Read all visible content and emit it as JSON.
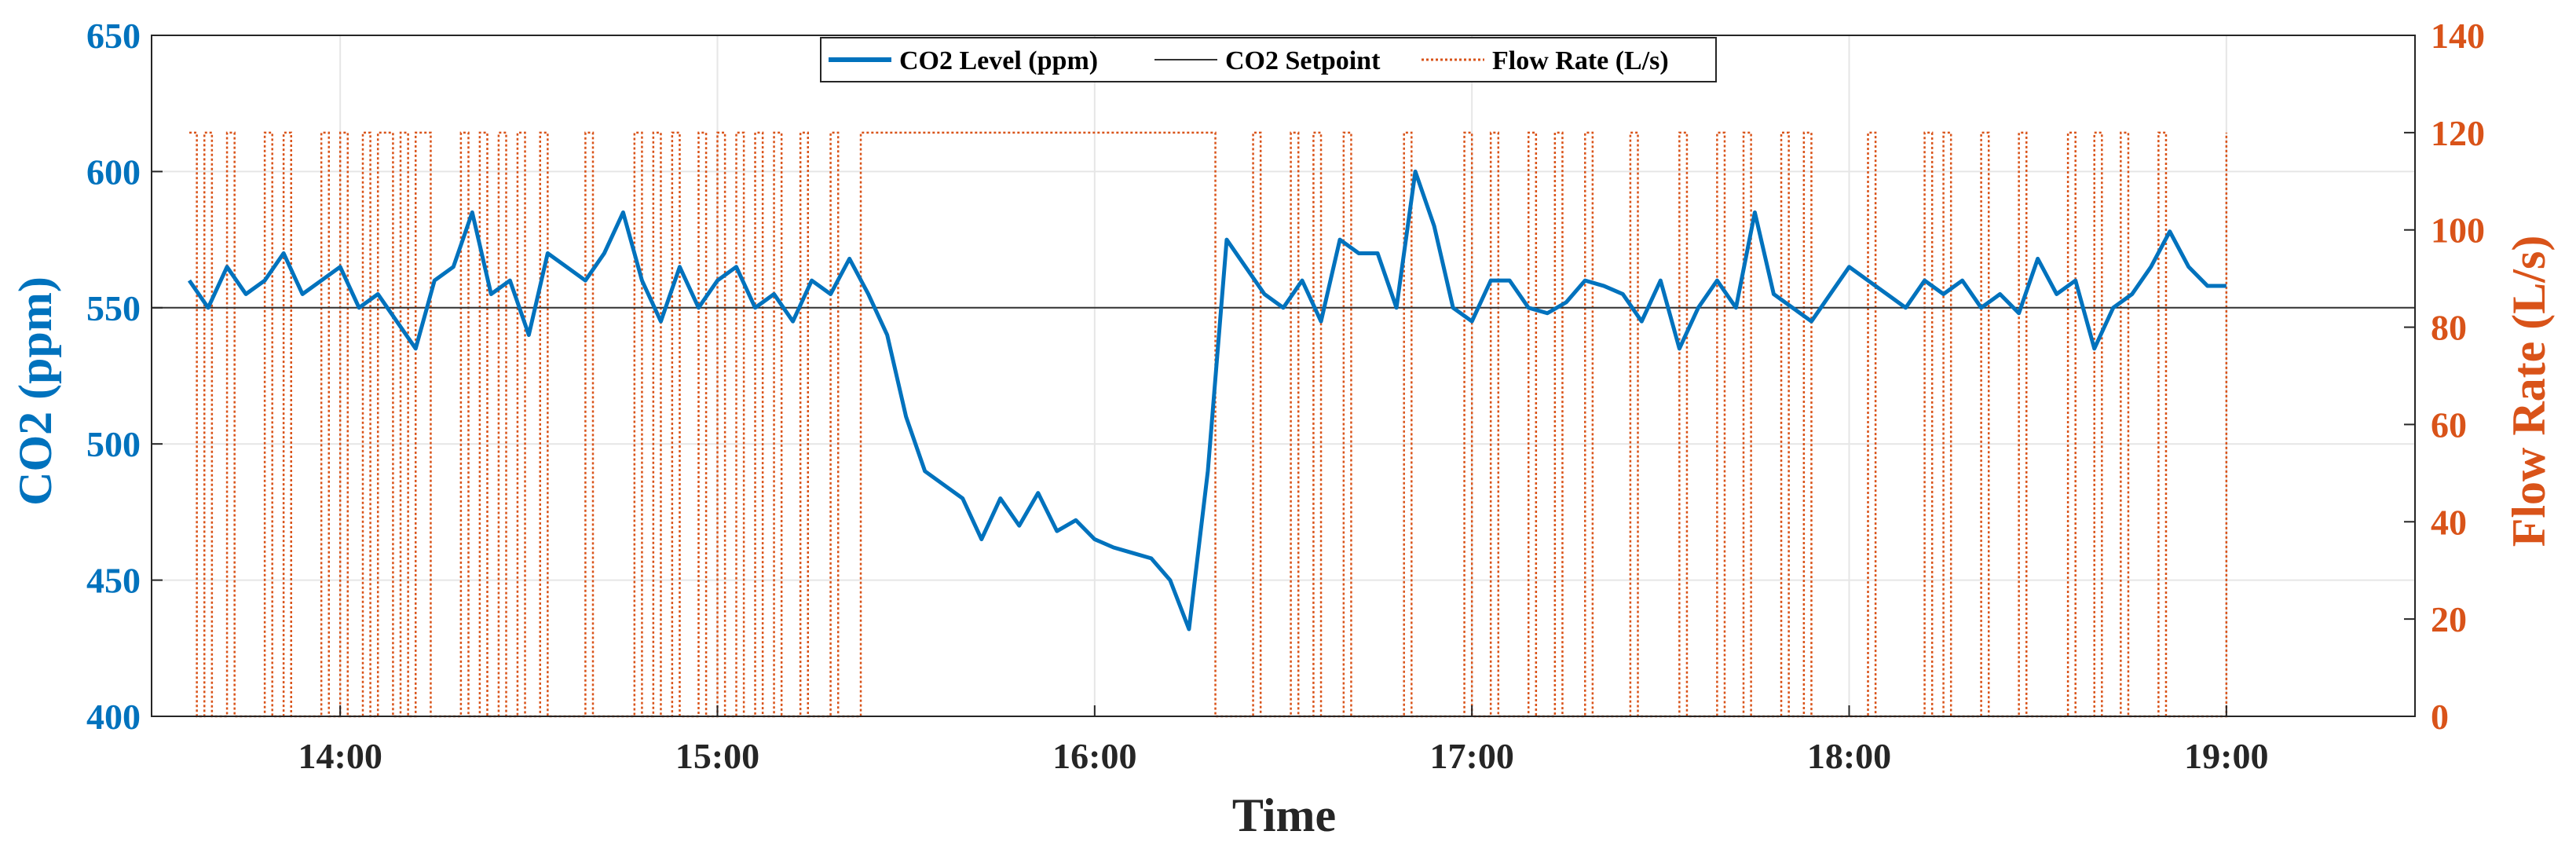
{
  "colors": {
    "co2": "#0072BD",
    "flow": "#D95319",
    "setpoint": "#333333",
    "grid": "#e6e6e6",
    "axis": "#262626"
  },
  "chart_data": {
    "type": "line",
    "title": "",
    "xlabel": "Time",
    "ylabel_left": "CO2 (ppm)",
    "ylabel_right": "Flow Rate (L/s)",
    "xlim": [
      13.5,
      19.5
    ],
    "ylim_left": [
      400,
      650
    ],
    "ylim_right": [
      0,
      140
    ],
    "x_ticks": [
      14,
      15,
      16,
      17,
      18,
      19
    ],
    "x_tick_labels": [
      "14:00",
      "15:00",
      "16:00",
      "17:00",
      "18:00",
      "19:00"
    ],
    "y_left_ticks": [
      400,
      450,
      500,
      550,
      600,
      650
    ],
    "y_left_tick_labels": [
      "400",
      "450",
      "500",
      "550",
      "600",
      "650"
    ],
    "y_right_ticks": [
      0,
      20,
      40,
      60,
      80,
      100,
      120,
      140
    ],
    "y_right_tick_labels": [
      "0",
      "20",
      "40",
      "60",
      "80",
      "100",
      "120",
      "140"
    ],
    "grid": true,
    "legend_position": "top-center",
    "legend": [
      "CO2 Level (ppm)",
      "CO2 Setpoint",
      "Flow Rate (L/s)"
    ],
    "series": [
      {
        "name": "CO2 Level (ppm)",
        "axis": "left",
        "x": [
          13.6,
          13.65,
          13.7,
          13.75,
          13.8,
          13.85,
          13.9,
          13.95,
          14.0,
          14.05,
          14.1,
          14.15,
          14.2,
          14.25,
          14.3,
          14.35,
          14.4,
          14.45,
          14.5,
          14.55,
          14.6,
          14.65,
          14.7,
          14.75,
          14.8,
          14.85,
          14.9,
          14.95,
          15.0,
          15.05,
          15.1,
          15.15,
          15.2,
          15.25,
          15.3,
          15.35,
          15.4,
          15.45,
          15.5,
          15.55,
          15.6,
          15.65,
          15.7,
          15.75,
          15.8,
          15.85,
          15.9,
          15.95,
          16.0,
          16.05,
          16.1,
          16.15,
          16.2,
          16.25,
          16.3,
          16.35,
          16.4,
          16.45,
          16.5,
          16.55,
          16.6,
          16.65,
          16.7,
          16.75,
          16.8,
          16.85,
          16.9,
          16.95,
          17.0,
          17.05,
          17.1,
          17.15,
          17.2,
          17.25,
          17.3,
          17.35,
          17.4,
          17.45,
          17.5,
          17.55,
          17.6,
          17.65,
          17.7,
          17.75,
          17.8,
          17.85,
          17.9,
          17.95,
          18.0,
          18.05,
          18.1,
          18.15,
          18.2,
          18.25,
          18.3,
          18.35,
          18.4,
          18.45,
          18.5,
          18.55,
          18.6,
          18.65,
          18.7,
          18.75,
          18.8,
          18.85,
          18.9,
          18.95,
          19.0
        ],
        "y": [
          560,
          550,
          565,
          555,
          560,
          570,
          555,
          560,
          565,
          550,
          555,
          545,
          535,
          560,
          565,
          585,
          555,
          560,
          540,
          570,
          565,
          560,
          570,
          585,
          560,
          545,
          565,
          550,
          560,
          565,
          550,
          555,
          545,
          560,
          555,
          568,
          555,
          540,
          510,
          490,
          485,
          480,
          465,
          480,
          470,
          482,
          468,
          472,
          465,
          462,
          460,
          458,
          450,
          432,
          490,
          575,
          565,
          555,
          550,
          560,
          545,
          575,
          570,
          570,
          550,
          600,
          580,
          550,
          545,
          560,
          560,
          550,
          548,
          552,
          560,
          558,
          555,
          545,
          560,
          535,
          550,
          560,
          550,
          585,
          555,
          550,
          545,
          555,
          565,
          560,
          555,
          550,
          560,
          555,
          560,
          550,
          555,
          548,
          568,
          555,
          560,
          535,
          550,
          555,
          565,
          578,
          565,
          558,
          558
        ]
      },
      {
        "name": "CO2 Setpoint",
        "axis": "left",
        "x": [
          13.5,
          19.5
        ],
        "y": [
          550,
          550
        ]
      },
      {
        "name": "Flow Rate (L/s)",
        "axis": "right",
        "type": "step",
        "x": [
          13.6,
          13.62,
          13.64,
          13.66,
          13.7,
          13.72,
          13.8,
          13.82,
          13.85,
          13.87,
          13.95,
          13.97,
          14.0,
          14.02,
          14.06,
          14.08,
          14.1,
          14.14,
          14.16,
          14.18,
          14.2,
          14.24,
          14.32,
          14.34,
          14.37,
          14.39,
          14.42,
          14.44,
          14.47,
          14.49,
          14.53,
          14.55,
          14.65,
          14.67,
          14.78,
          14.8,
          14.83,
          14.85,
          14.88,
          14.9,
          14.95,
          14.97,
          15.0,
          15.02,
          15.05,
          15.07,
          15.1,
          15.12,
          15.15,
          15.17,
          15.22,
          15.24,
          15.3,
          15.32,
          15.38,
          16.32,
          16.42,
          16.44,
          16.52,
          16.54,
          16.58,
          16.6,
          16.66,
          16.68,
          16.82,
          16.84,
          16.98,
          17.0,
          17.05,
          17.07,
          17.15,
          17.17,
          17.22,
          17.24,
          17.3,
          17.32,
          17.42,
          17.44,
          17.55,
          17.57,
          17.65,
          17.67,
          17.72,
          17.74,
          17.82,
          17.84,
          17.88,
          17.9,
          18.05,
          18.07,
          18.2,
          18.22,
          18.25,
          18.27,
          18.35,
          18.37,
          18.45,
          18.47,
          18.58,
          18.6,
          18.65,
          18.67,
          18.72,
          18.74,
          18.82,
          18.84,
          19.0
        ],
        "y": [
          120,
          0,
          120,
          0,
          120,
          0,
          120,
          0,
          120,
          0,
          120,
          0,
          120,
          0,
          120,
          0,
          120,
          0,
          120,
          0,
          120,
          0,
          120,
          0,
          120,
          0,
          120,
          0,
          120,
          0,
          120,
          0,
          120,
          0,
          120,
          0,
          120,
          0,
          120,
          0,
          120,
          0,
          120,
          0,
          120,
          0,
          120,
          0,
          120,
          0,
          120,
          0,
          120,
          0,
          120,
          0,
          120,
          0,
          120,
          0,
          120,
          0,
          120,
          0,
          120,
          0,
          120,
          0,
          120,
          0,
          120,
          0,
          120,
          0,
          120,
          0,
          120,
          0,
          120,
          0,
          120,
          0,
          120,
          0,
          120,
          0,
          120,
          0,
          120,
          0,
          120,
          0,
          120,
          0,
          120,
          0,
          120,
          0,
          120,
          0,
          120,
          0,
          120,
          0,
          120,
          0,
          120
        ]
      }
    ]
  }
}
